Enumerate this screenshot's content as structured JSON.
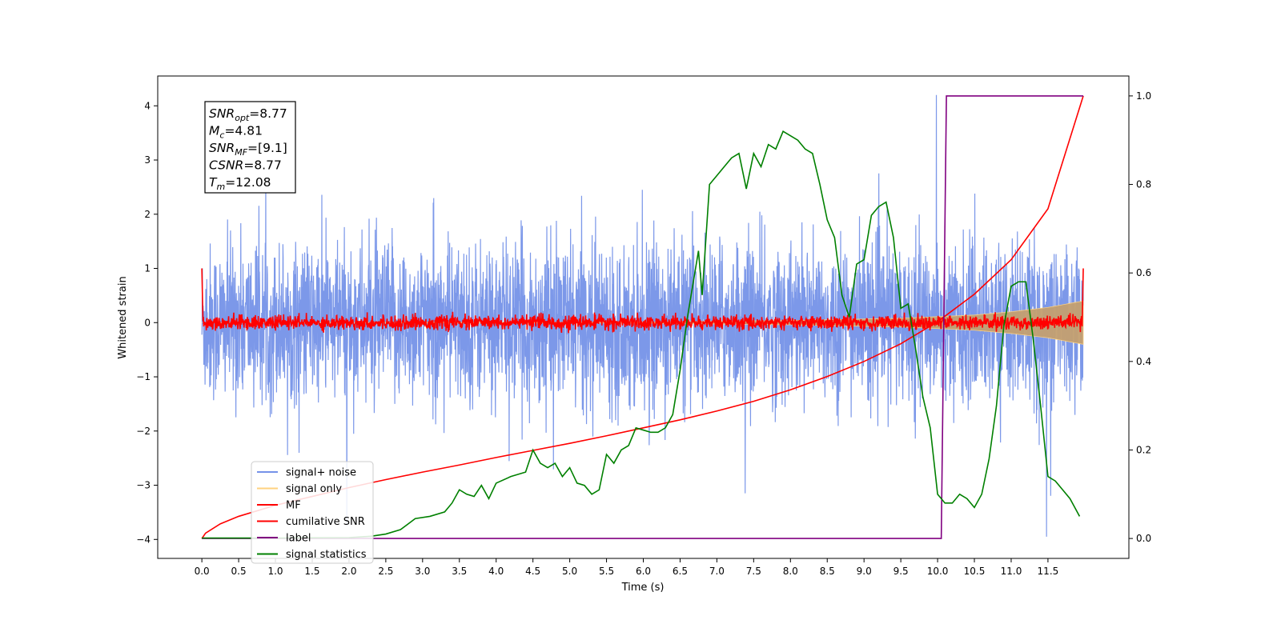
{
  "chart_data": {
    "type": "line",
    "xlabel": "Time (s)",
    "ylabel_left": "Whitened strain",
    "xlim": [
      -0.6,
      12.6
    ],
    "ylim_left": [
      -4.35,
      4.55
    ],
    "ylim_right": [
      -0.045,
      1.045
    ],
    "x_ticks": [
      "0.0",
      "0.5",
      "1.0",
      "1.5",
      "2.0",
      "2.5",
      "3.0",
      "3.5",
      "4.0",
      "4.5",
      "5.0",
      "5.5",
      "6.0",
      "6.5",
      "7.0",
      "7.5",
      "8.0",
      "8.5",
      "9.0",
      "9.5",
      "10.0",
      "10.5",
      "11.0",
      "11.5"
    ],
    "y_ticks_left": [
      "−4",
      "−3",
      "−2",
      "−1",
      "0",
      "1",
      "2",
      "3",
      "4"
    ],
    "y_ticks_right": [
      "0.0",
      "0.2",
      "0.4",
      "0.6",
      "0.8",
      "1.0"
    ],
    "annotation": {
      "lines": [
        {
          "base": "SNR",
          "sub": "opt",
          "rest": "=8.77"
        },
        {
          "base": "M",
          "sub": "c",
          "rest": "=4.81"
        },
        {
          "base": "SNR",
          "sub": "MF",
          "rest": "=[9.1]"
        },
        {
          "base": "CSNR",
          "sub": "",
          "rest": "=8.77"
        },
        {
          "base": "T",
          "sub": "m",
          "rest": "=12.08"
        }
      ]
    },
    "legend": {
      "placement": "lower-left",
      "entries": [
        {
          "label": "signal+ noise",
          "color": "#7592e8"
        },
        {
          "label": "signal only",
          "color": "#ffd27f"
        },
        {
          "label": "MF",
          "color": "#ff0000"
        },
        {
          "label": "cumilative SNR",
          "color": "#ff0000"
        },
        {
          "label": "label",
          "color": "#800080"
        },
        {
          "label": "signal statistics",
          "color": "#008000"
        }
      ]
    },
    "series": [
      {
        "name": "signal+ noise",
        "axis": "left",
        "color": "#7592e8",
        "description_envelope": {
          "x_start": 0.0,
          "x_end": 11.98,
          "typical_half_range": 1.6,
          "peak_max": 4.2,
          "peak_min": -3.95
        }
      },
      {
        "name": "signal only",
        "axis": "left",
        "color": "#ffd27f",
        "amplitude_envelope": {
          "x": [
            0.0,
            6.0,
            8.0,
            9.5,
            10.5,
            11.0,
            11.5,
            11.98
          ],
          "amp": [
            0.0,
            0.01,
            0.04,
            0.08,
            0.14,
            0.2,
            0.28,
            0.4
          ]
        }
      },
      {
        "name": "MF",
        "axis": "left",
        "color": "#ff0000",
        "noise_half_range": 0.12,
        "start_value": 1.0,
        "end_value": 1.0
      },
      {
        "name": "cumilative SNR",
        "axis": "right",
        "color": "#ff0000",
        "x": [
          0.0,
          0.05,
          0.25,
          0.5,
          1.0,
          1.5,
          2.0,
          2.5,
          3.0,
          3.5,
          4.0,
          4.5,
          5.0,
          5.5,
          6.0,
          6.5,
          7.0,
          7.5,
          8.0,
          8.5,
          9.0,
          9.5,
          10.0,
          10.5,
          11.0,
          11.5,
          11.98
        ],
        "y": [
          0.0,
          0.012,
          0.033,
          0.05,
          0.075,
          0.095,
          0.115,
          0.133,
          0.15,
          0.166,
          0.183,
          0.199,
          0.215,
          0.232,
          0.25,
          0.268,
          0.288,
          0.31,
          0.336,
          0.366,
          0.4,
          0.44,
          0.49,
          0.552,
          0.63,
          0.745,
          1.0
        ]
      },
      {
        "name": "label",
        "axis": "right",
        "color": "#800080",
        "x": [
          0.0,
          10.05,
          10.12,
          11.98
        ],
        "y": [
          0.0,
          0.0,
          1.0,
          1.0
        ]
      },
      {
        "name": "signal statistics",
        "axis": "right",
        "color": "#008000",
        "x": [
          0.0,
          1.0,
          2.0,
          2.3,
          2.5,
          2.7,
          2.9,
          3.1,
          3.3,
          3.4,
          3.5,
          3.6,
          3.7,
          3.8,
          3.9,
          4.0,
          4.2,
          4.4,
          4.5,
          4.6,
          4.7,
          4.8,
          4.9,
          5.0,
          5.1,
          5.2,
          5.3,
          5.4,
          5.5,
          5.6,
          5.7,
          5.8,
          5.9,
          6.0,
          6.1,
          6.2,
          6.3,
          6.4,
          6.5,
          6.6,
          6.7,
          6.75,
          6.8,
          6.9,
          7.0,
          7.1,
          7.2,
          7.3,
          7.4,
          7.5,
          7.6,
          7.7,
          7.8,
          7.9,
          8.0,
          8.1,
          8.2,
          8.3,
          8.4,
          8.5,
          8.6,
          8.7,
          8.8,
          8.9,
          9.0,
          9.1,
          9.2,
          9.3,
          9.4,
          9.5,
          9.6,
          9.7,
          9.8,
          9.9,
          10.0,
          10.1,
          10.2,
          10.3,
          10.4,
          10.5,
          10.6,
          10.7,
          10.8,
          10.9,
          11.0,
          11.1,
          11.2,
          11.3,
          11.4,
          11.5,
          11.6,
          11.7,
          11.8,
          11.93
        ],
        "y": [
          0.001,
          0.001,
          0.002,
          0.005,
          0.01,
          0.02,
          0.045,
          0.05,
          0.06,
          0.08,
          0.11,
          0.1,
          0.095,
          0.12,
          0.09,
          0.125,
          0.14,
          0.15,
          0.2,
          0.17,
          0.16,
          0.17,
          0.14,
          0.16,
          0.125,
          0.12,
          0.1,
          0.11,
          0.19,
          0.17,
          0.2,
          0.21,
          0.25,
          0.245,
          0.24,
          0.24,
          0.25,
          0.28,
          0.38,
          0.5,
          0.6,
          0.65,
          0.55,
          0.8,
          0.82,
          0.84,
          0.86,
          0.87,
          0.79,
          0.87,
          0.84,
          0.89,
          0.88,
          0.92,
          0.91,
          0.9,
          0.88,
          0.87,
          0.8,
          0.72,
          0.68,
          0.55,
          0.5,
          0.62,
          0.63,
          0.73,
          0.75,
          0.76,
          0.68,
          0.52,
          0.53,
          0.43,
          0.32,
          0.25,
          0.1,
          0.08,
          0.08,
          0.1,
          0.09,
          0.07,
          0.1,
          0.18,
          0.3,
          0.48,
          0.57,
          0.58,
          0.58,
          0.45,
          0.3,
          0.14,
          0.13,
          0.11,
          0.09,
          0.05
        ]
      }
    ]
  }
}
